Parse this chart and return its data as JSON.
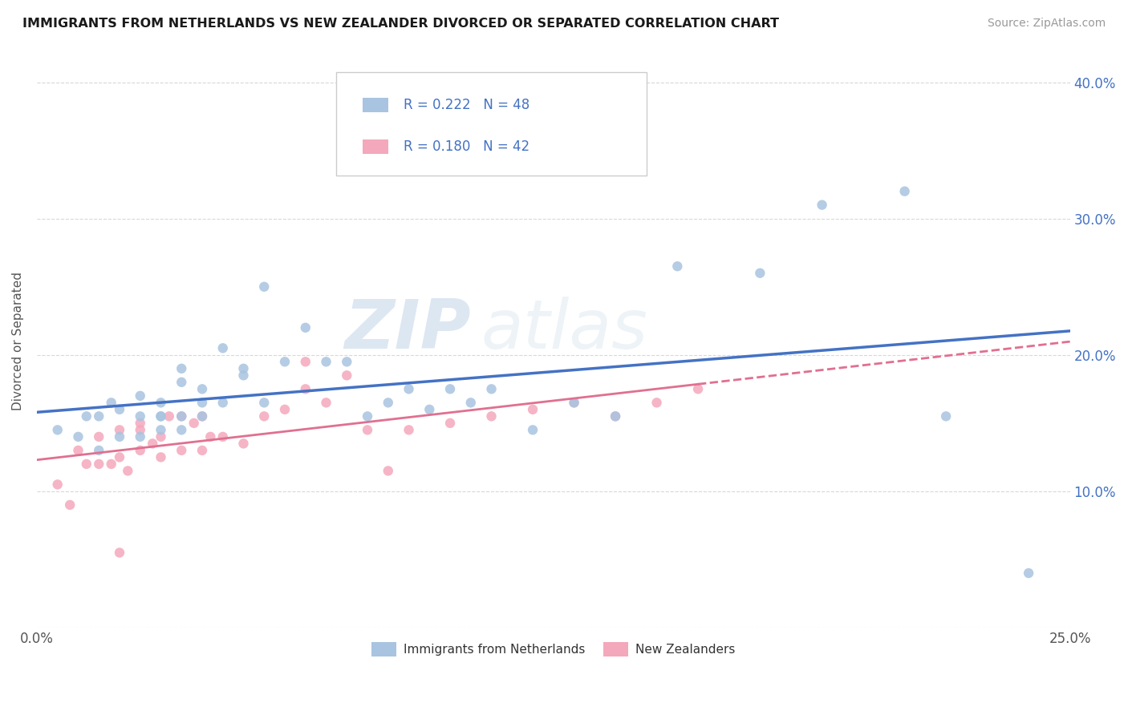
{
  "title": "IMMIGRANTS FROM NETHERLANDS VS NEW ZEALANDER DIVORCED OR SEPARATED CORRELATION CHART",
  "source_text": "Source: ZipAtlas.com",
  "ylabel": "Divorced or Separated",
  "legend1_label": "Immigrants from Netherlands",
  "legend2_label": "New Zealanders",
  "R1": 0.222,
  "N1": 48,
  "R2": 0.18,
  "N2": 42,
  "color1": "#a8c4e0",
  "color2": "#f4a8bc",
  "line1_color": "#4472c4",
  "line2_color": "#e07090",
  "text_color": "#4472c4",
  "xlim": [
    0.0,
    0.25
  ],
  "ylim": [
    0.0,
    0.42
  ],
  "xticks": [
    0.0,
    0.05,
    0.1,
    0.15,
    0.2,
    0.25
  ],
  "xticklabels": [
    "0.0%",
    "",
    "",
    "",
    "",
    "25.0%"
  ],
  "yticks": [
    0.0,
    0.1,
    0.2,
    0.3,
    0.4
  ],
  "yticklabels": [
    "",
    "10.0%",
    "20.0%",
    "30.0%",
    "40.0%"
  ],
  "scatter1_x": [
    0.005,
    0.01,
    0.015,
    0.015,
    0.02,
    0.02,
    0.025,
    0.025,
    0.025,
    0.03,
    0.03,
    0.03,
    0.03,
    0.035,
    0.035,
    0.035,
    0.035,
    0.04,
    0.04,
    0.04,
    0.045,
    0.045,
    0.05,
    0.05,
    0.055,
    0.055,
    0.06,
    0.065,
    0.07,
    0.075,
    0.08,
    0.085,
    0.09,
    0.095,
    0.1,
    0.105,
    0.11,
    0.12,
    0.13,
    0.14,
    0.155,
    0.175,
    0.19,
    0.21,
    0.22,
    0.24,
    0.012,
    0.018
  ],
  "scatter1_y": [
    0.145,
    0.14,
    0.13,
    0.155,
    0.14,
    0.16,
    0.155,
    0.14,
    0.17,
    0.155,
    0.145,
    0.165,
    0.155,
    0.18,
    0.19,
    0.145,
    0.155,
    0.155,
    0.175,
    0.165,
    0.205,
    0.165,
    0.185,
    0.19,
    0.25,
    0.165,
    0.195,
    0.22,
    0.195,
    0.195,
    0.155,
    0.165,
    0.175,
    0.16,
    0.175,
    0.165,
    0.175,
    0.145,
    0.165,
    0.155,
    0.265,
    0.26,
    0.31,
    0.32,
    0.155,
    0.04,
    0.155,
    0.165
  ],
  "scatter2_x": [
    0.005,
    0.008,
    0.01,
    0.012,
    0.015,
    0.015,
    0.018,
    0.02,
    0.02,
    0.022,
    0.025,
    0.025,
    0.025,
    0.028,
    0.03,
    0.03,
    0.032,
    0.035,
    0.035,
    0.038,
    0.04,
    0.04,
    0.042,
    0.045,
    0.05,
    0.055,
    0.06,
    0.065,
    0.07,
    0.075,
    0.08,
    0.085,
    0.09,
    0.1,
    0.11,
    0.12,
    0.13,
    0.14,
    0.15,
    0.16,
    0.065,
    0.02
  ],
  "scatter2_y": [
    0.105,
    0.09,
    0.13,
    0.12,
    0.12,
    0.14,
    0.12,
    0.125,
    0.145,
    0.115,
    0.13,
    0.145,
    0.15,
    0.135,
    0.14,
    0.125,
    0.155,
    0.155,
    0.13,
    0.15,
    0.13,
    0.155,
    0.14,
    0.14,
    0.135,
    0.155,
    0.16,
    0.175,
    0.165,
    0.185,
    0.145,
    0.115,
    0.145,
    0.15,
    0.155,
    0.16,
    0.165,
    0.155,
    0.165,
    0.175,
    0.195,
    0.055
  ],
  "line1_x_start": 0.0,
  "line1_x_end": 0.25,
  "line2_x_start": 0.0,
  "line2_x_end": 0.16,
  "line2_dash_start": 0.16,
  "line2_dash_end": 0.25,
  "watermark_zip": "ZIP",
  "watermark_atlas": "atlas",
  "background_color": "#ffffff",
  "grid_color": "#c8c8c8"
}
